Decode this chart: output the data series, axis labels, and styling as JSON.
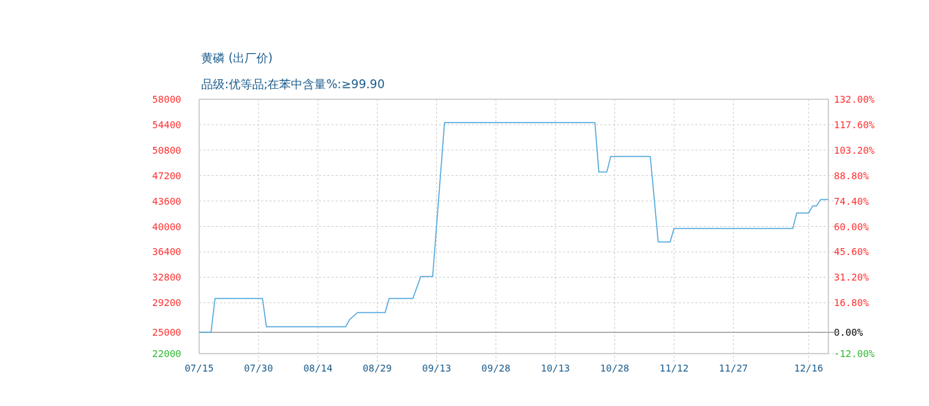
{
  "chart_data": {
    "type": "line",
    "title": "黄磷 (出厂价)",
    "subtitle": "品级:优等品;在苯中含量%:≥99.90",
    "x": [
      "--07-15",
      "--07-18",
      "--07-19",
      "--07-31",
      "--08-01",
      "--08-21",
      "--08-22",
      "--08-24",
      "--08-31",
      "--09-01",
      "--09-07",
      "--09-09",
      "--09-12",
      "--09-15",
      "--10-23",
      "--10-24",
      "--10-26",
      "--10-27",
      "--11-06",
      "--11-08",
      "--11-11",
      "--11-12",
      "--12-12",
      "--12-13",
      "--12-16",
      "--12-17",
      "--12-18",
      "--12-19",
      "--12-21"
    ],
    "series": [
      {
        "color": "#4ea6dc",
        "values": [
          25000,
          25000,
          29800,
          29800,
          25800,
          25800,
          26800,
          27800,
          27800,
          29800,
          29800,
          32900,
          32900,
          54700,
          54700,
          47700,
          47700,
          49900,
          49900,
          37800,
          37800,
          39700,
          39700,
          41900,
          41900,
          42900,
          42900,
          43800,
          43800
        ]
      }
    ],
    "xlim": [
      "--07-15",
      "--12-21"
    ],
    "xticks": [
      {
        "value": "--07-15",
        "label": "07/15"
      },
      {
        "value": "--07-30",
        "label": "07/30"
      },
      {
        "value": "--08-14",
        "label": "08/14"
      },
      {
        "value": "--08-29",
        "label": "08/29"
      },
      {
        "value": "--09-13",
        "label": "09/13"
      },
      {
        "value": "--09-28",
        "label": "09/28"
      },
      {
        "value": "--10-13",
        "label": "10/13"
      },
      {
        "value": "--10-28",
        "label": "10/28"
      },
      {
        "value": "--11-12",
        "label": "11/12"
      },
      {
        "value": "--11-27",
        "label": "11/27"
      },
      {
        "value": "--12-16",
        "label": "12/16"
      }
    ],
    "ylim": [
      22000,
      58000
    ],
    "yticks": [
      22000,
      25000,
      29200,
      32800,
      36400,
      40000,
      43600,
      47200,
      50800,
      54400,
      58000
    ],
    "y2lim": [
      -12,
      132
    ],
    "y2ticks": [
      {
        "value": -12,
        "label": "-12.00%"
      },
      {
        "value": 0,
        "label": "0.00%"
      },
      {
        "value": 16.8,
        "label": "16.80%"
      },
      {
        "value": 31.2,
        "label": "31.20%"
      },
      {
        "value": 45.6,
        "label": "45.60%"
      },
      {
        "value": 60,
        "label": "60.00%"
      },
      {
        "value": 74.4,
        "label": "74.40%"
      },
      {
        "value": 88.8,
        "label": "88.80%"
      },
      {
        "value": 103.2,
        "label": "103.20%"
      },
      {
        "value": 117.6,
        "label": "117.60%"
      },
      {
        "value": 132,
        "label": "132.00%"
      }
    ],
    "ref_lines": [
      {
        "axis": "y2",
        "value": 0,
        "color": "#a0a0a0",
        "line_style": "solid"
      }
    ],
    "grid": true,
    "marker": "none",
    "line_style": "solid"
  }
}
